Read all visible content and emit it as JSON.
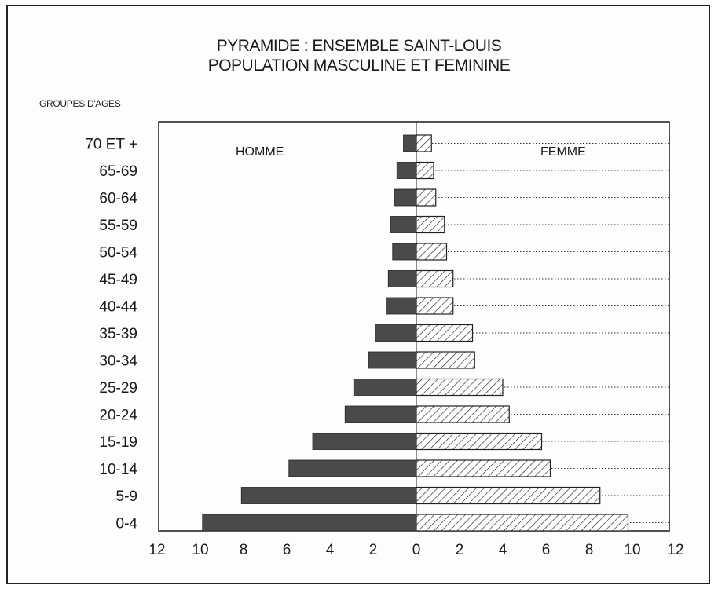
{
  "chart_data": {
    "type": "bar",
    "orientation": "horizontal-pyramid",
    "title": "PYRAMIDE : ENSEMBLE SAINT-LOUIS",
    "subtitle": "POPULATION MASCULINE ET FEMININE",
    "ylabel": "GROUPES D'AGES",
    "xlabel": "",
    "categories": [
      "70 ET +",
      "65-69",
      "60-64",
      "55-59",
      "50-54",
      "45-49",
      "40-44",
      "35-39",
      "30-34",
      "25-29",
      "20-24",
      "15-19",
      "10-14",
      "5-9",
      "0-4"
    ],
    "series": [
      {
        "name": "HOMME",
        "color": "#4a4a4a",
        "values": [
          0.6,
          0.9,
          1.0,
          1.2,
          1.1,
          1.3,
          1.4,
          1.9,
          2.2,
          2.9,
          3.3,
          4.8,
          5.9,
          8.1,
          9.9
        ]
      },
      {
        "name": "FEMME",
        "color": "#ffffff",
        "pattern": "diagonal-hatch",
        "values": [
          0.7,
          0.8,
          0.9,
          1.3,
          1.4,
          1.7,
          1.7,
          2.6,
          2.7,
          4.0,
          4.3,
          5.8,
          6.2,
          8.5,
          9.8
        ]
      }
    ],
    "xlim": [
      -12,
      12
    ],
    "x_ticks": [
      "12",
      "10",
      "8",
      "6",
      "4",
      "2",
      "0",
      "2",
      "4",
      "6",
      "8",
      "10",
      "12"
    ],
    "grid": "dotted horizontal lines on right half"
  }
}
